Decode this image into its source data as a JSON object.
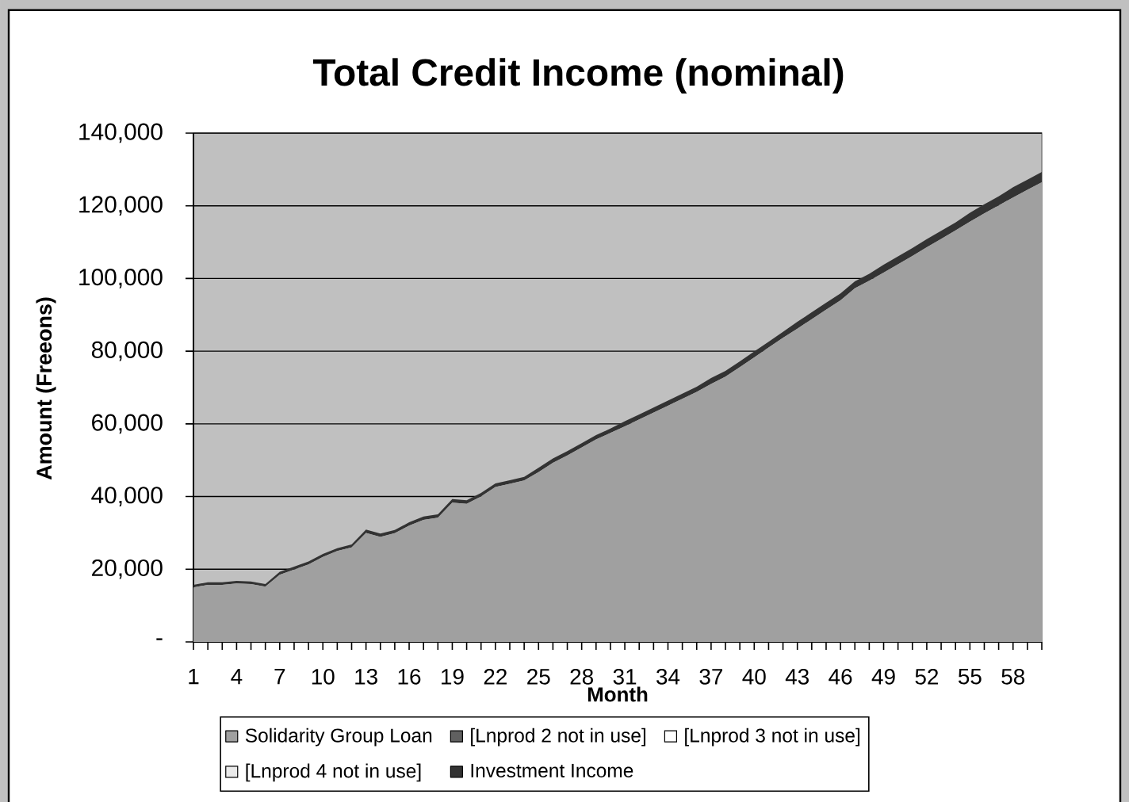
{
  "chart_data": {
    "type": "area",
    "stacked": true,
    "title": "Total Credit Income  (nominal)",
    "xlabel": "Month",
    "ylabel": "Amount (Freeons)",
    "categories": [
      "1",
      null,
      null,
      "4",
      null,
      null,
      "7",
      null,
      null,
      "10",
      null,
      null,
      "13",
      null,
      null,
      "16",
      null,
      null,
      "19",
      null,
      null,
      "22",
      null,
      null,
      "25",
      null,
      null,
      "28",
      null,
      null,
      "31",
      null,
      null,
      "34",
      null,
      null,
      "37",
      null,
      null,
      "40",
      null,
      null,
      "43",
      null,
      null,
      "46",
      null,
      null,
      "49",
      null,
      null,
      "52",
      null,
      null,
      "55",
      null,
      null,
      "58",
      null,
      null
    ],
    "ylim": [
      0,
      140000
    ],
    "yticks": [
      {
        "value": 0,
        "label": "-"
      },
      {
        "value": 20000,
        "label": "20,000"
      },
      {
        "value": 40000,
        "label": "40,000"
      },
      {
        "value": 60000,
        "label": "60,000"
      },
      {
        "value": 80000,
        "label": "80,000"
      },
      {
        "value": 100000,
        "label": "100,000"
      },
      {
        "value": 120000,
        "label": "120,000"
      },
      {
        "value": 140000,
        "label": "140,000"
      }
    ],
    "grid": "y",
    "legend": "bottom",
    "series": [
      {
        "name": "Solidarity Group Loan",
        "color": "#a0a0a0",
        "values": [
          15000,
          15700,
          15700,
          16100,
          15900,
          15200,
          18500,
          19900,
          21300,
          23400,
          25000,
          26000,
          30000,
          28900,
          29900,
          32000,
          33600,
          34200,
          38300,
          38000,
          40000,
          42600,
          43500,
          44400,
          46700,
          49300,
          51300,
          53500,
          55700,
          57500,
          59300,
          61200,
          63100,
          65000,
          66900,
          68800,
          71000,
          73000,
          75600,
          78300,
          81000,
          83700,
          86200,
          88800,
          91400,
          94000,
          97300,
          99400,
          101600,
          103900,
          106200,
          108600,
          110900,
          113200,
          115600,
          117900,
          120100,
          122300,
          124400,
          126500
        ]
      },
      {
        "name": "[Lnprod 2 not in use]",
        "color": "#606060",
        "values": [
          null,
          null,
          null,
          null,
          null,
          null,
          null,
          null,
          null,
          null,
          null,
          null,
          null,
          null,
          null,
          null,
          null,
          null,
          null,
          null,
          null,
          null,
          null,
          null,
          null,
          null,
          null,
          null,
          null,
          null,
          null,
          null,
          null,
          null,
          null,
          null,
          null,
          null,
          null,
          null,
          null,
          null,
          null,
          null,
          null,
          null,
          null,
          null,
          null,
          null,
          null,
          null,
          null,
          null,
          null,
          null,
          null,
          null,
          null,
          null
        ]
      },
      {
        "name": "[Lnprod 3 not in use]",
        "color": "#ffffff",
        "values": [
          null,
          null,
          null,
          null,
          null,
          null,
          null,
          null,
          null,
          null,
          null,
          null,
          null,
          null,
          null,
          null,
          null,
          null,
          null,
          null,
          null,
          null,
          null,
          null,
          null,
          null,
          null,
          null,
          null,
          null,
          null,
          null,
          null,
          null,
          null,
          null,
          null,
          null,
          null,
          null,
          null,
          null,
          null,
          null,
          null,
          null,
          null,
          null,
          null,
          null,
          null,
          null,
          null,
          null,
          null,
          null,
          null,
          null,
          null,
          null
        ]
      },
      {
        "name": "[Lnprod 4 not in use]",
        "color": "#eaeaea",
        "values": [
          null,
          null,
          null,
          null,
          null,
          null,
          null,
          null,
          null,
          null,
          null,
          null,
          null,
          null,
          null,
          null,
          null,
          null,
          null,
          null,
          null,
          null,
          null,
          null,
          null,
          null,
          null,
          null,
          null,
          null,
          null,
          null,
          null,
          null,
          null,
          null,
          null,
          null,
          null,
          null,
          null,
          null,
          null,
          null,
          null,
          null,
          null,
          null,
          null,
          null,
          null,
          null,
          null,
          null,
          null,
          null,
          null,
          null,
          null,
          null
        ]
      },
      {
        "name": "Investment Income",
        "color": "#333333",
        "values": [
          700,
          700,
          700,
          700,
          700,
          700,
          800,
          800,
          800,
          800,
          800,
          800,
          900,
          900,
          900,
          900,
          900,
          900,
          1000,
          1000,
          1000,
          1000,
          1000,
          1000,
          1200,
          1200,
          1200,
          1200,
          1200,
          1200,
          1400,
          1400,
          1400,
          1400,
          1400,
          1400,
          1600,
          1600,
          1600,
          1600,
          1600,
          1600,
          1900,
          1900,
          1900,
          1900,
          1900,
          1900,
          2200,
          2200,
          2200,
          2200,
          2200,
          2200,
          2500,
          2500,
          2500,
          2800,
          2800,
          2800
        ]
      }
    ]
  }
}
